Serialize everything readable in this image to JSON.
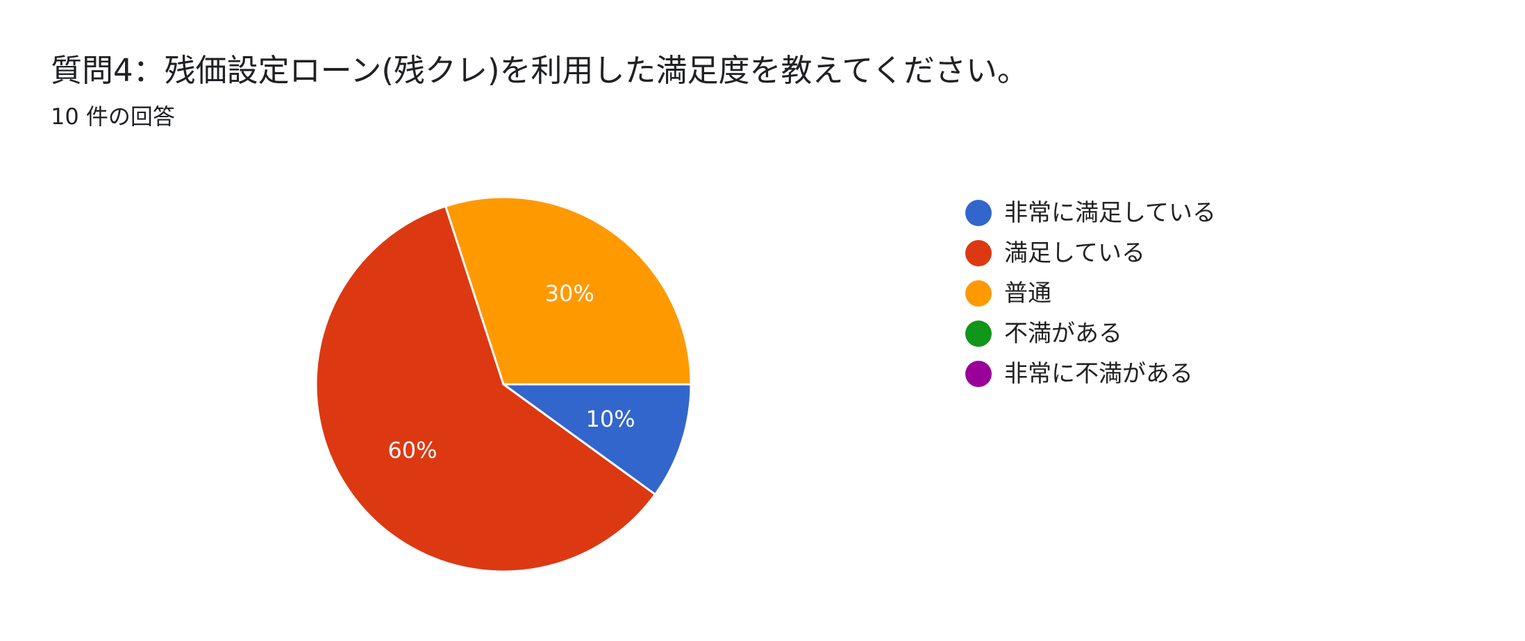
{
  "question": {
    "title": "質問4：残価設定ローン(残クレ)を利用した満足度を教えてください。",
    "response_count": "10 件の回答"
  },
  "chart_data": {
    "type": "pie",
    "title": "質問4：残価設定ローン(残クレ)を利用した満足度を教えてください。",
    "subtitle": "10 件の回答",
    "categories": [
      "非常に満足している",
      "満足している",
      "普通",
      "不満がある",
      "非常に不満がある"
    ],
    "values": [
      10,
      60,
      30,
      0,
      0
    ],
    "colors": [
      "#3366cc",
      "#dc3912",
      "#ff9900",
      "#109618",
      "#990099"
    ],
    "data_labels": [
      "10%",
      "60%",
      "30%",
      "",
      ""
    ],
    "legend_position": "right"
  }
}
